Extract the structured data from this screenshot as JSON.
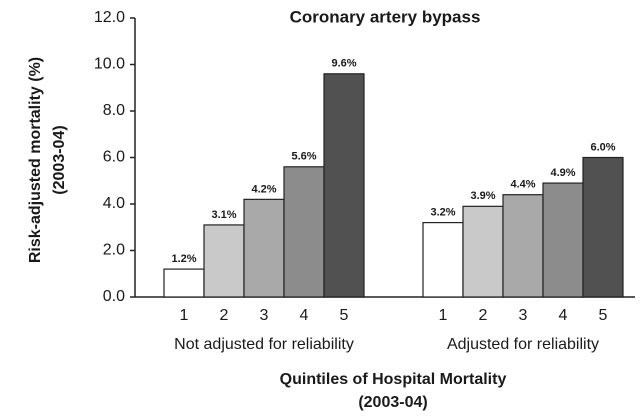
{
  "chart_data": {
    "type": "bar",
    "title": "Coronary artery bypass",
    "y_label": [
      "Risk-adjusted mortality (%)",
      "(2003-04)"
    ],
    "x_label": [
      "Quintiles of Hospital Mortality",
      "(2003-04)"
    ],
    "categories": [
      "Not adjusted for reliability",
      "Adjusted for reliability"
    ],
    "series": [
      {
        "name": "1",
        "color": "#ffffff",
        "values": [
          1.2,
          3.2
        ],
        "value_labels": [
          "1.2%",
          "3.2%"
        ]
      },
      {
        "name": "2",
        "color": "#c9c9c9",
        "values": [
          3.1,
          3.9
        ],
        "value_labels": [
          "3.1%",
          "3.9%"
        ]
      },
      {
        "name": "3",
        "color": "#a9a9a9",
        "values": [
          4.2,
          4.4
        ],
        "value_labels": [
          "4.2%",
          "4.4%"
        ]
      },
      {
        "name": "4",
        "color": "#8c8c8c",
        "values": [
          5.6,
          4.9
        ],
        "value_labels": [
          "5.6%",
          "4.9%"
        ]
      },
      {
        "name": "5",
        "color": "#515151",
        "values": [
          9.6,
          6.0
        ],
        "value_labels": [
          "9.6%",
          "6.0%"
        ]
      }
    ],
    "ylim": [
      0,
      12
    ],
    "yticks": [
      {
        "value": 0,
        "label": "0.0"
      },
      {
        "value": 2,
        "label": "2.0"
      },
      {
        "value": 4,
        "label": "4.0"
      },
      {
        "value": 6,
        "label": "6.0"
      },
      {
        "value": 8,
        "label": "8.0"
      },
      {
        "value": 10,
        "label": "10.0"
      },
      {
        "value": 12,
        "label": "12.0"
      }
    ]
  }
}
